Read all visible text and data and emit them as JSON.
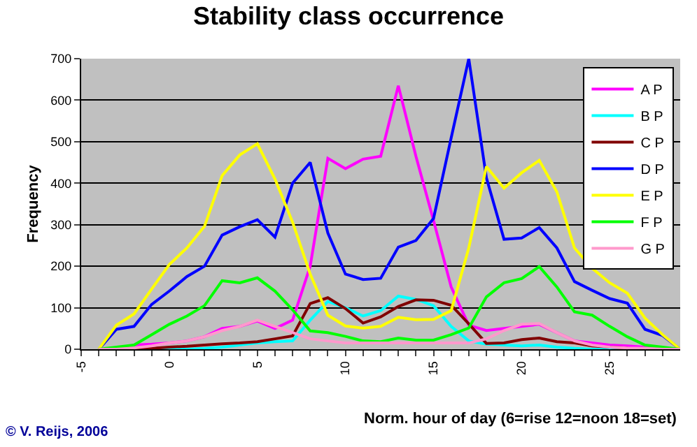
{
  "chart_data": {
    "type": "line",
    "title": "Stability class occurrence",
    "xlabel": "Norm. hour of day (6=rise 12=noon 18=set)",
    "ylabel": "Frequency",
    "annotations": [
      "© V. Reijs, 2006"
    ],
    "x": [
      -4,
      -3,
      -2,
      -1,
      0,
      1,
      2,
      3,
      4,
      5,
      6,
      7,
      8,
      9,
      10,
      11,
      12,
      13,
      14,
      15,
      16,
      17,
      18,
      19,
      20,
      21,
      22,
      23,
      24,
      25,
      26,
      27,
      28,
      29
    ],
    "series": [
      {
        "name": "A P",
        "color": "#ff00ff",
        "values": [
          0,
          0,
          10,
          12,
          15,
          20,
          30,
          50,
          55,
          68,
          50,
          70,
          200,
          460,
          435,
          458,
          465,
          635,
          465,
          310,
          150,
          58,
          45,
          50,
          55,
          60,
          40,
          20,
          15,
          10,
          8,
          5,
          2,
          0
        ]
      },
      {
        "name": "B P",
        "color": "#00ffff",
        "values": [
          null,
          null,
          null,
          0,
          0,
          0,
          2,
          5,
          10,
          15,
          18,
          20,
          70,
          115,
          100,
          80,
          93,
          128,
          120,
          105,
          55,
          20,
          12,
          10,
          8,
          10,
          5,
          2,
          0,
          0,
          0,
          null,
          null,
          null
        ]
      },
      {
        "name": "C P",
        "color": "#800000",
        "values": [
          0,
          0,
          0,
          2,
          5,
          7,
          10,
          13,
          15,
          18,
          25,
          32,
          110,
          124,
          98,
          63,
          78,
          103,
          119,
          118,
          106,
          61,
          14,
          15,
          23,
          27,
          18,
          15,
          8,
          5,
          3,
          null,
          null,
          null
        ]
      },
      {
        "name": "D P",
        "color": "#0000ff",
        "values": [
          0,
          48,
          55,
          108,
          140,
          175,
          200,
          275,
          295,
          312,
          270,
          400,
          450,
          280,
          181,
          168,
          171,
          246,
          262,
          315,
          509,
          700,
          413,
          265,
          268,
          293,
          244,
          163,
          142,
          122,
          111,
          48,
          33,
          0
        ]
      },
      {
        "name": "E P",
        "color": "#ffff00",
        "values": [
          0,
          58,
          85,
          145,
          204,
          244,
          296,
          418,
          468,
          495,
          410,
          306,
          181,
          82,
          56,
          51,
          55,
          77,
          71,
          72,
          93,
          244,
          440,
          388,
          425,
          455,
          379,
          244,
          195,
          160,
          135,
          75,
          35,
          0
        ]
      },
      {
        "name": "F P",
        "color": "#00ff00",
        "values": [
          0,
          5,
          10,
          35,
          60,
          80,
          105,
          165,
          160,
          172,
          140,
          95,
          44,
          40,
          31,
          20,
          18,
          27,
          22,
          22,
          35,
          51,
          126,
          160,
          170,
          199,
          150,
          90,
          82,
          55,
          30,
          10,
          5,
          0
        ]
      },
      {
        "name": "G P",
        "color": "#ff99cc",
        "values": [
          0,
          0,
          3,
          8,
          15,
          20,
          30,
          45,
          55,
          70,
          55,
          40,
          25,
          20,
          15,
          15,
          15,
          15,
          15,
          15,
          15,
          15,
          25,
          45,
          60,
          62,
          40,
          20,
          10,
          5,
          3,
          2,
          0,
          0
        ]
      }
    ],
    "xlim": [
      -5,
      29
    ],
    "xticks": [
      -5,
      {
        "value": -4,
        "label": null
      },
      {
        "value": -3,
        "label": null
      },
      {
        "value": -2,
        "label": null
      },
      {
        "value": -1,
        "label": null
      },
      0,
      {
        "value": 1,
        "label": null
      },
      {
        "value": 2,
        "label": null
      },
      {
        "value": 3,
        "label": null
      },
      {
        "value": 4,
        "label": null
      },
      5,
      {
        "value": 6,
        "label": null
      },
      {
        "value": 7,
        "label": null
      },
      {
        "value": 8,
        "label": null
      },
      {
        "value": 9,
        "label": null
      },
      10,
      {
        "value": 11,
        "label": null
      },
      {
        "value": 12,
        "label": null
      },
      {
        "value": 13,
        "label": null
      },
      {
        "value": 14,
        "label": null
      },
      15,
      {
        "value": 16,
        "label": null
      },
      {
        "value": 17,
        "label": null
      },
      {
        "value": 18,
        "label": null
      },
      {
        "value": 19,
        "label": null
      },
      20,
      {
        "value": 21,
        "label": null
      },
      {
        "value": 22,
        "label": null
      },
      {
        "value": 23,
        "label": null
      },
      {
        "value": 24,
        "label": null
      },
      25,
      {
        "value": 26,
        "label": null
      },
      {
        "value": 27,
        "label": null
      },
      {
        "value": 28,
        "label": null
      }
    ],
    "ylim": [
      0,
      700
    ],
    "yticks": [
      0,
      100,
      200,
      300,
      400,
      500,
      600,
      700
    ],
    "grid": "y",
    "legend": "top right",
    "marker": "none",
    "line_style": "solid"
  }
}
